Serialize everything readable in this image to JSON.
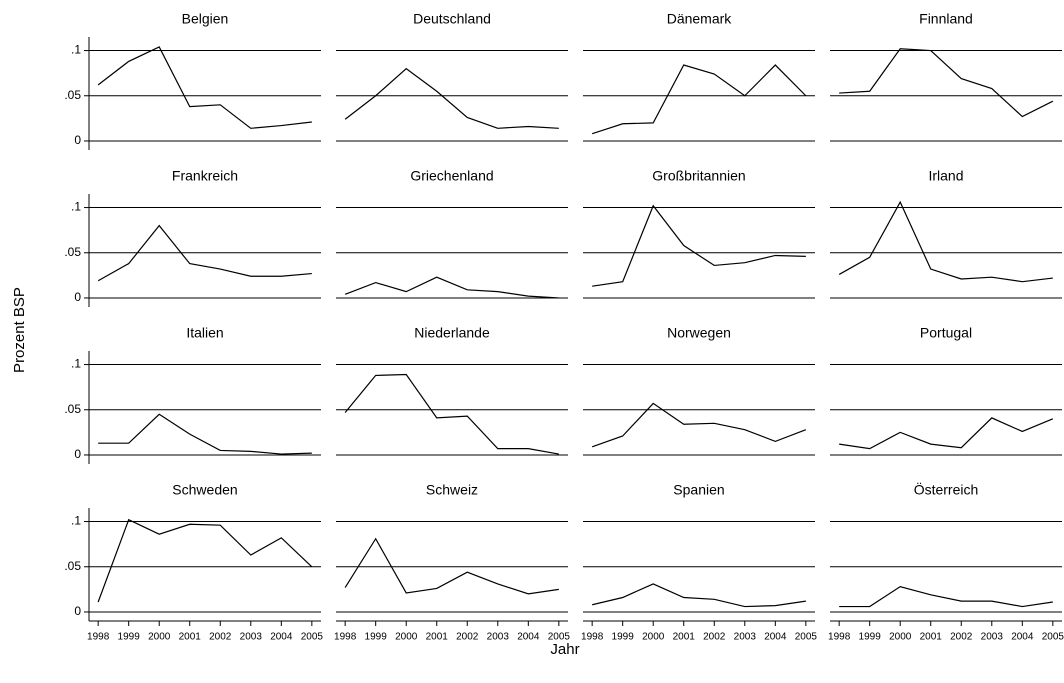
{
  "axis_labels": {
    "x": "Jahr",
    "y": "Prozent BSP"
  },
  "chart_data": [
    {
      "type": "line",
      "title": "Belgien",
      "x": [
        1998,
        1999,
        2000,
        2001,
        2002,
        2003,
        2004,
        2005
      ],
      "values": [
        0.062,
        0.088,
        0.104,
        0.038,
        0.04,
        0.014,
        0.017,
        0.021
      ],
      "color": "#000000",
      "xlim": [
        1997.7,
        2005.3
      ],
      "ylim": [
        -0.01,
        0.115
      ],
      "grid": true,
      "yticks": [
        {
          "value": 0.1,
          "label": ".1"
        },
        {
          "value": 0.05,
          "label": ".05"
        },
        0
      ]
    },
    {
      "type": "line",
      "title": "Deutschland",
      "x": [
        1998,
        1999,
        2000,
        2001,
        2002,
        2003,
        2004,
        2005
      ],
      "values": [
        0.024,
        0.05,
        0.08,
        0.055,
        0.026,
        0.014,
        0.016,
        0.014
      ],
      "color": "#000000",
      "xlim": [
        1997.7,
        2005.3
      ],
      "ylim": [
        -0.01,
        0.115
      ],
      "grid": true
    },
    {
      "type": "line",
      "title": "Dänemark",
      "x": [
        1998,
        1999,
        2000,
        2001,
        2002,
        2003,
        2004,
        2005
      ],
      "values": [
        0.008,
        0.019,
        0.02,
        0.084,
        0.074,
        0.05,
        0.084,
        0.05
      ],
      "color": "#000000",
      "xlim": [
        1997.7,
        2005.3
      ],
      "ylim": [
        -0.01,
        0.115
      ],
      "grid": true
    },
    {
      "type": "line",
      "title": "Finnland",
      "x": [
        1998,
        1999,
        2000,
        2001,
        2002,
        2003,
        2004,
        2005
      ],
      "values": [
        0.053,
        0.055,
        0.102,
        0.1,
        0.069,
        0.058,
        0.027,
        0.044
      ],
      "color": "#000000",
      "xlim": [
        1997.7,
        2005.3
      ],
      "ylim": [
        -0.01,
        0.115
      ],
      "grid": true
    },
    {
      "type": "line",
      "title": "Frankreich",
      "x": [
        1998,
        1999,
        2000,
        2001,
        2002,
        2003,
        2004,
        2005
      ],
      "values": [
        0.019,
        0.038,
        0.08,
        0.038,
        0.032,
        0.024,
        0.024,
        0.027
      ],
      "color": "#000000",
      "xlim": [
        1997.7,
        2005.3
      ],
      "ylim": [
        -0.01,
        0.115
      ],
      "grid": true,
      "yticks": [
        {
          "value": 0.1,
          "label": ".1"
        },
        {
          "value": 0.05,
          "label": ".05"
        },
        0
      ]
    },
    {
      "type": "line",
      "title": "Griechenland",
      "x": [
        1998,
        1999,
        2000,
        2001,
        2002,
        2003,
        2004,
        2005
      ],
      "values": [
        0.004,
        0.017,
        0.007,
        0.023,
        0.009,
        0.007,
        0.002,
        0.0
      ],
      "color": "#000000",
      "xlim": [
        1997.7,
        2005.3
      ],
      "ylim": [
        -0.01,
        0.115
      ],
      "grid": true
    },
    {
      "type": "line",
      "title": "Großbritannien",
      "x": [
        1998,
        1999,
        2000,
        2001,
        2002,
        2003,
        2004,
        2005
      ],
      "values": [
        0.013,
        0.018,
        0.102,
        0.058,
        0.036,
        0.039,
        0.047,
        0.046
      ],
      "color": "#000000",
      "xlim": [
        1997.7,
        2005.3
      ],
      "ylim": [
        -0.01,
        0.115
      ],
      "grid": true
    },
    {
      "type": "line",
      "title": "Irland",
      "x": [
        1998,
        1999,
        2000,
        2001,
        2002,
        2003,
        2004,
        2005
      ],
      "values": [
        0.026,
        0.045,
        0.106,
        0.032,
        0.021,
        0.023,
        0.018,
        0.022
      ],
      "color": "#000000",
      "xlim": [
        1997.7,
        2005.3
      ],
      "ylim": [
        -0.01,
        0.115
      ],
      "grid": true
    },
    {
      "type": "line",
      "title": "Italien",
      "x": [
        1998,
        1999,
        2000,
        2001,
        2002,
        2003,
        2004,
        2005
      ],
      "values": [
        0.013,
        0.013,
        0.045,
        0.023,
        0.005,
        0.004,
        0.001,
        0.002
      ],
      "color": "#000000",
      "xlim": [
        1997.7,
        2005.3
      ],
      "ylim": [
        -0.01,
        0.115
      ],
      "grid": true,
      "yticks": [
        {
          "value": 0.1,
          "label": ".1"
        },
        {
          "value": 0.05,
          "label": ".05"
        },
        0
      ]
    },
    {
      "type": "line",
      "title": "Niederlande",
      "x": [
        1998,
        1999,
        2000,
        2001,
        2002,
        2003,
        2004,
        2005
      ],
      "values": [
        0.047,
        0.088,
        0.089,
        0.041,
        0.043,
        0.007,
        0.007,
        0.001
      ],
      "color": "#000000",
      "xlim": [
        1997.7,
        2005.3
      ],
      "ylim": [
        -0.01,
        0.115
      ],
      "grid": true
    },
    {
      "type": "line",
      "title": "Norwegen",
      "x": [
        1998,
        1999,
        2000,
        2001,
        2002,
        2003,
        2004,
        2005
      ],
      "values": [
        0.009,
        0.021,
        0.057,
        0.034,
        0.035,
        0.028,
        0.015,
        0.028
      ],
      "color": "#000000",
      "xlim": [
        1997.7,
        2005.3
      ],
      "ylim": [
        -0.01,
        0.115
      ],
      "grid": true
    },
    {
      "type": "line",
      "title": "Portugal",
      "x": [
        1998,
        1999,
        2000,
        2001,
        2002,
        2003,
        2004,
        2005
      ],
      "values": [
        0.012,
        0.007,
        0.025,
        0.012,
        0.008,
        0.041,
        0.026,
        0.04
      ],
      "color": "#000000",
      "xlim": [
        1997.7,
        2005.3
      ],
      "ylim": [
        -0.01,
        0.115
      ],
      "grid": true
    },
    {
      "type": "line",
      "title": "Schweden",
      "x": [
        1998,
        1999,
        2000,
        2001,
        2002,
        2003,
        2004,
        2005
      ],
      "values": [
        0.011,
        0.102,
        0.086,
        0.097,
        0.096,
        0.063,
        0.082,
        0.05
      ],
      "color": "#000000",
      "xlim": [
        1997.7,
        2005.3
      ],
      "ylim": [
        -0.01,
        0.115
      ],
      "grid": true,
      "yticks": [
        {
          "value": 0.1,
          "label": ".1"
        },
        {
          "value": 0.05,
          "label": ".05"
        },
        0
      ]
    },
    {
      "type": "line",
      "title": "Schweiz",
      "x": [
        1998,
        1999,
        2000,
        2001,
        2002,
        2003,
        2004,
        2005
      ],
      "values": [
        0.027,
        0.081,
        0.021,
        0.026,
        0.044,
        0.031,
        0.02,
        0.025
      ],
      "color": "#000000",
      "xlim": [
        1997.7,
        2005.3
      ],
      "ylim": [
        -0.01,
        0.115
      ],
      "grid": true
    },
    {
      "type": "line",
      "title": "Spanien",
      "x": [
        1998,
        1999,
        2000,
        2001,
        2002,
        2003,
        2004,
        2005
      ],
      "values": [
        0.008,
        0.016,
        0.031,
        0.016,
        0.014,
        0.006,
        0.007,
        0.012
      ],
      "color": "#000000",
      "xlim": [
        1997.7,
        2005.3
      ],
      "ylim": [
        -0.01,
        0.115
      ],
      "grid": true
    },
    {
      "type": "line",
      "title": "Österreich",
      "x": [
        1998,
        1999,
        2000,
        2001,
        2002,
        2003,
        2004,
        2005
      ],
      "values": [
        0.006,
        0.006,
        0.028,
        0.019,
        0.012,
        0.012,
        0.006,
        0.011
      ],
      "color": "#000000",
      "xlim": [
        1997.7,
        2005.3
      ],
      "ylim": [
        -0.01,
        0.115
      ],
      "grid": true
    }
  ]
}
